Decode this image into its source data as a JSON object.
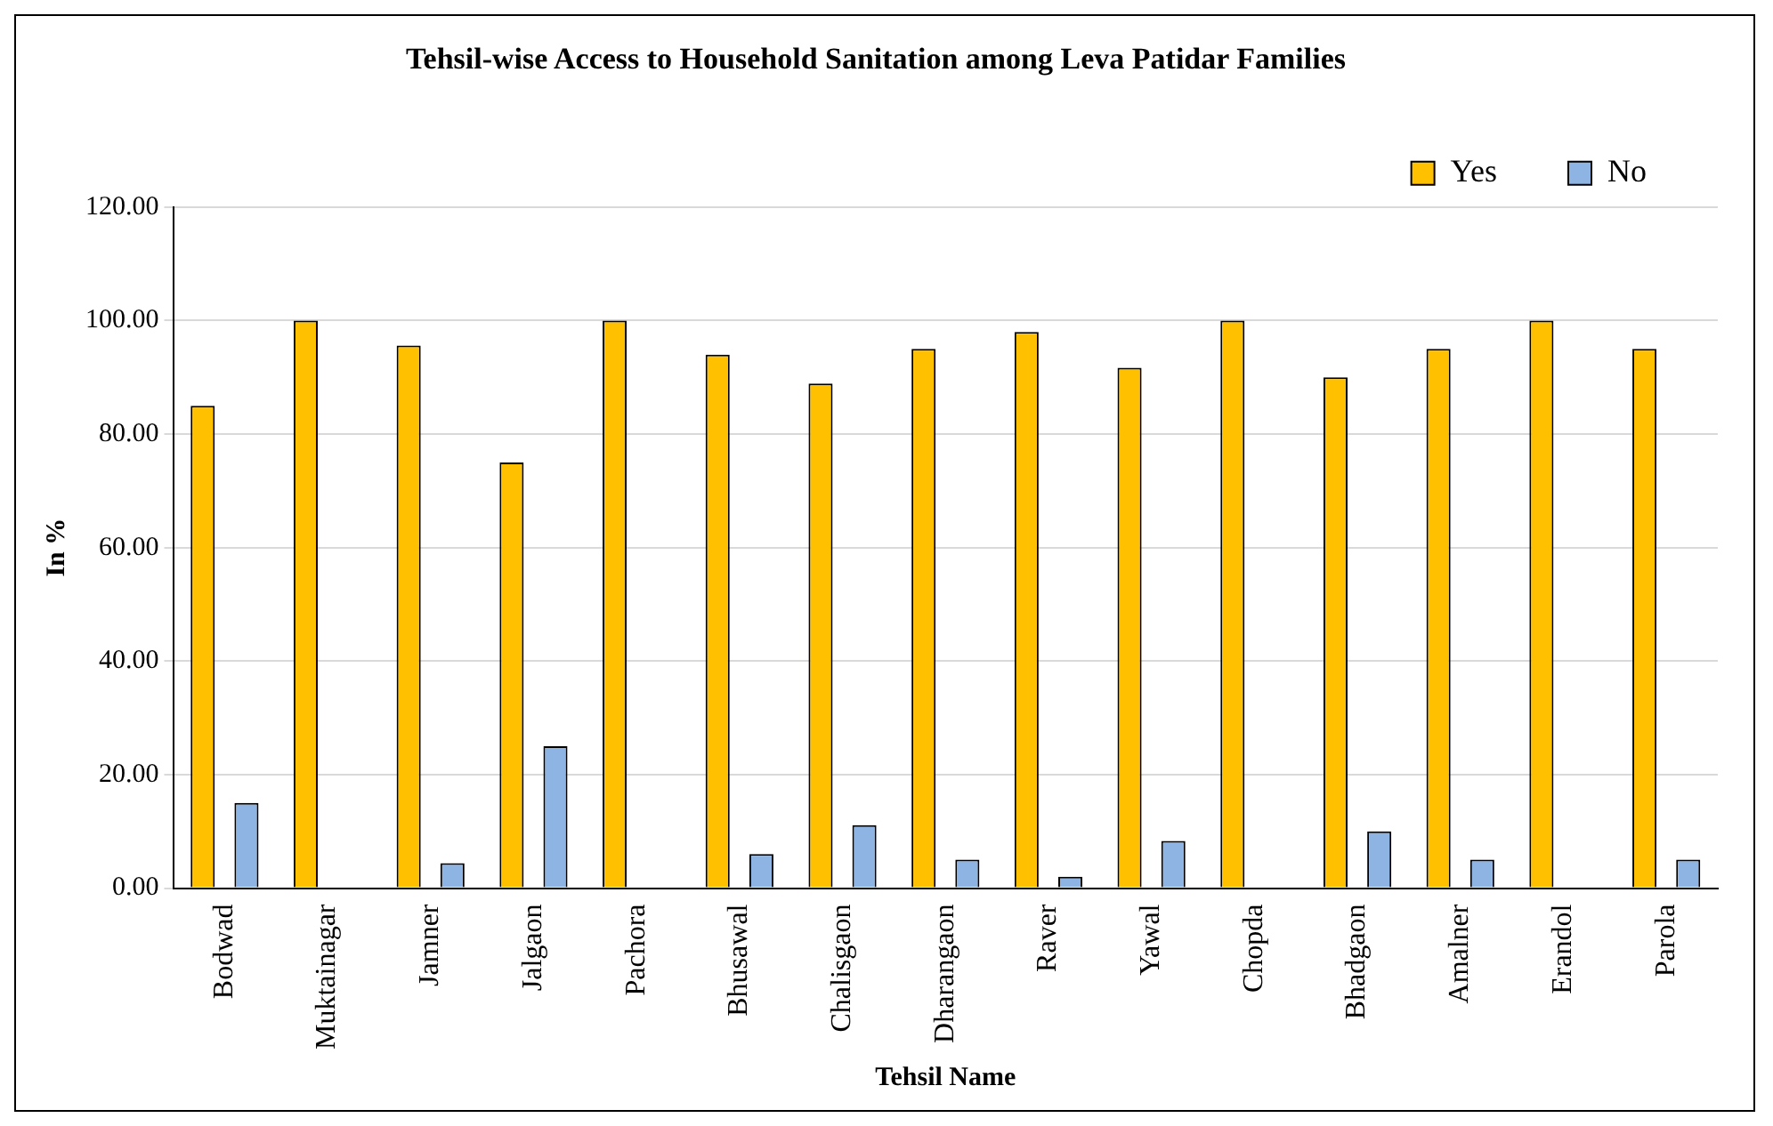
{
  "chart_data": {
    "type": "bar",
    "title": "Tehsil-wise Access to Household Sanitation among Leva Patidar Families",
    "xlabel": "Tehsil Name",
    "ylabel": "In %",
    "categories": [
      "Bodwad",
      "Muktainagar",
      "Jamner",
      "Jalgaon",
      "Pachora",
      "Bhusawal",
      "Chalisgaon",
      "Dharangaon",
      "Raver",
      "Yawal",
      "Chopda",
      "Bhadgaon",
      "Amalner",
      "Erandol",
      "Parola"
    ],
    "series": [
      {
        "name": "Yes",
        "color": "#ffc000",
        "values": [
          85,
          100,
          95.6,
          75,
          100,
          94,
          88.9,
          95,
          98,
          91.7,
          100,
          90,
          95,
          100,
          95
        ]
      },
      {
        "name": "No",
        "color": "#8db4e2",
        "values": [
          15,
          0,
          4.4,
          25,
          0,
          6,
          11.1,
          5,
          2,
          8.3,
          0,
          10,
          5,
          0,
          5
        ]
      }
    ],
    "ylim": [
      0,
      120
    ],
    "yticks": [
      {
        "value": 0,
        "label": "0.00"
      },
      {
        "value": 20,
        "label": "20.00"
      },
      {
        "value": 40,
        "label": "40.00"
      },
      {
        "value": 60,
        "label": "60.00"
      },
      {
        "value": 80,
        "label": "80.00"
      },
      {
        "value": 100,
        "label": "100.00"
      },
      {
        "value": 120,
        "label": "120.00"
      }
    ],
    "grid": "y",
    "legend": "top right"
  }
}
